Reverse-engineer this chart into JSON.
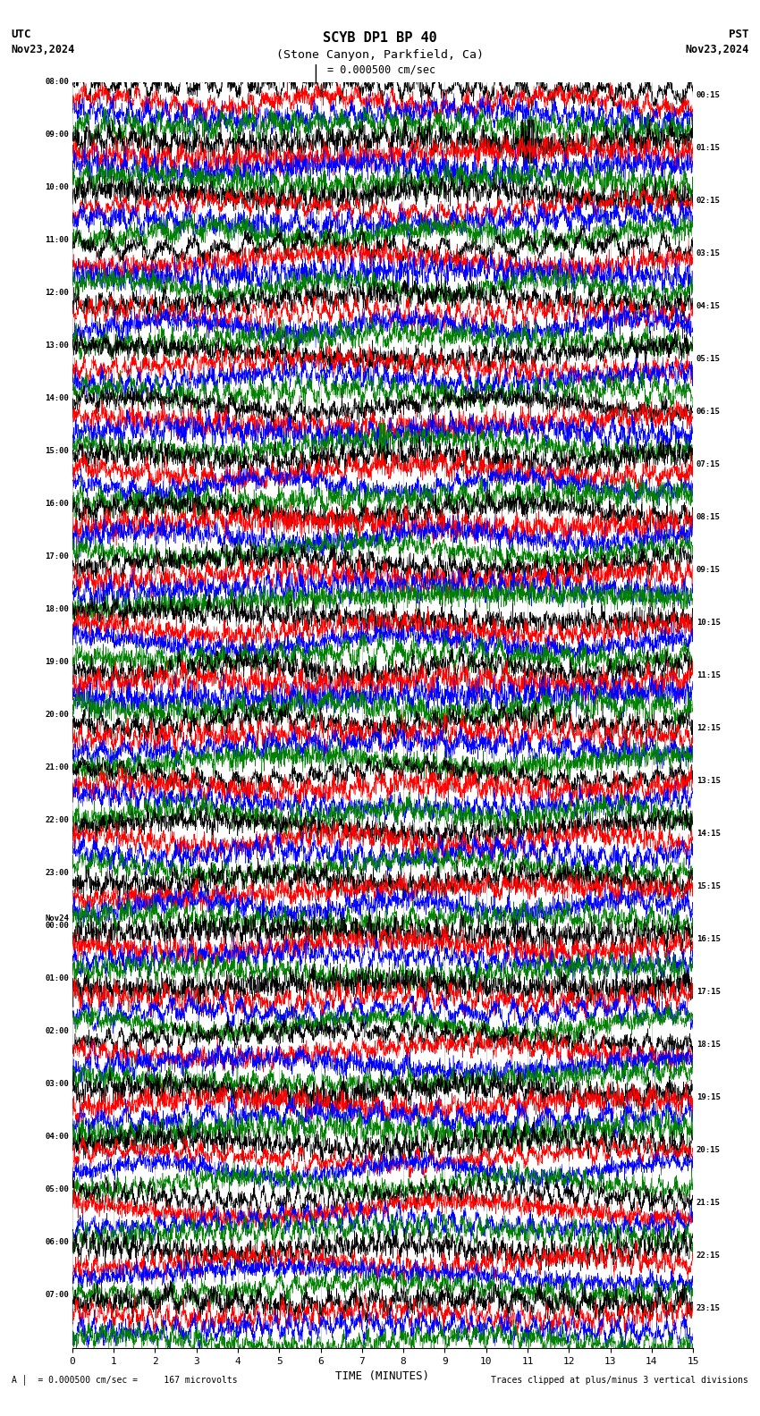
{
  "title_line1": "SCYB DP1 BP 40",
  "title_line2": "(Stone Canyon, Parkfield, Ca)",
  "scale_label": "= 0.000500 cm/sec",
  "utc_label": "UTC",
  "utc_date": "Nov23,2024",
  "pst_label": "PST",
  "pst_date": "Nov23,2024",
  "xlabel": "TIME (MINUTES)",
  "footer_left": "= 0.000500 cm/sec =     167 microvolts",
  "footer_right": "Traces clipped at plus/minus 3 vertical divisions",
  "left_times": [
    "08:00",
    "09:00",
    "10:00",
    "11:00",
    "12:00",
    "13:00",
    "14:00",
    "15:00",
    "16:00",
    "17:00",
    "18:00",
    "19:00",
    "20:00",
    "21:00",
    "22:00",
    "23:00",
    "Nov24",
    "00:00",
    "01:00",
    "02:00",
    "03:00",
    "04:00",
    "05:00",
    "06:00",
    "07:00"
  ],
  "left_times_special": [
    16
  ],
  "right_times": [
    "00:15",
    "01:15",
    "02:15",
    "03:15",
    "04:15",
    "05:15",
    "06:15",
    "07:15",
    "08:15",
    "09:15",
    "10:15",
    "11:15",
    "12:15",
    "13:15",
    "14:15",
    "15:15",
    "16:15",
    "17:15",
    "18:15",
    "19:15",
    "20:15",
    "21:15",
    "22:15",
    "23:15"
  ],
  "colors": [
    "black",
    "red",
    "blue",
    "green"
  ],
  "n_hours": 24,
  "traces_per_hour": 4,
  "xlim": [
    0,
    15
  ],
  "xticks": [
    0,
    1,
    2,
    3,
    4,
    5,
    6,
    7,
    8,
    9,
    10,
    11,
    12,
    13,
    14,
    15
  ],
  "background_color": "white",
  "seed": 42,
  "n_points": 3000,
  "trace_scale": 0.55,
  "linewidth": 0.35
}
